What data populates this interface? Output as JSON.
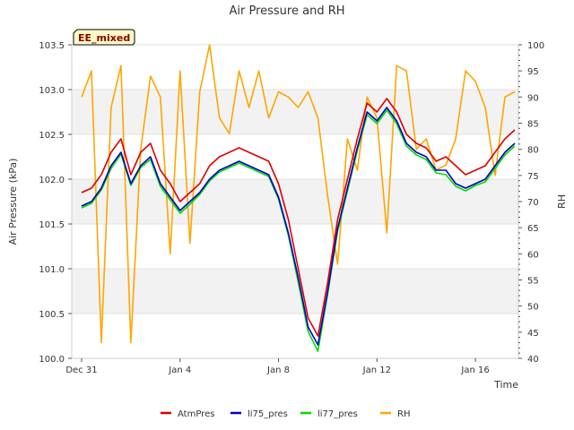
{
  "chart_data": {
    "type": "line",
    "title": "Air Pressure and RH",
    "xlabel": "Time",
    "ylabel": "Air Pressure (kPa)",
    "y2label": "RH",
    "badge": "EE_mixed",
    "x_ticks": [
      "Dec 31",
      "Jan 4",
      "Jan 8",
      "Jan 12",
      "Jan 16"
    ],
    "x_tick_days": [
      0,
      4,
      8,
      12,
      16
    ],
    "xlim_days": [
      0,
      17.6
    ],
    "ylim": [
      100.0,
      103.5
    ],
    "y_ticks": [
      "100.0",
      "100.5",
      "101.0",
      "101.5",
      "102.0",
      "102.5",
      "103.0",
      "103.5"
    ],
    "y2lim": [
      40,
      100
    ],
    "y2_ticks": [
      "40",
      "45",
      "50",
      "55",
      "60",
      "65",
      "70",
      "75",
      "80",
      "85",
      "90",
      "95",
      "100"
    ],
    "grid": "horizontal bands",
    "legend_position": "bottom",
    "x_days": [
      0.0,
      0.4,
      0.8,
      1.2,
      1.6,
      2.0,
      2.4,
      2.8,
      3.2,
      3.6,
      4.0,
      4.4,
      4.8,
      5.2,
      5.6,
      6.0,
      6.4,
      6.8,
      7.2,
      7.6,
      8.0,
      8.4,
      8.8,
      9.2,
      9.6,
      10.0,
      10.4,
      10.8,
      11.2,
      11.6,
      12.0,
      12.4,
      12.8,
      13.2,
      13.6,
      14.0,
      14.4,
      14.8,
      15.2,
      15.6,
      16.0,
      16.4,
      16.8,
      17.2,
      17.6
    ],
    "series": [
      {
        "name": "AtmPres",
        "color": "#dd0000",
        "axis": "left",
        "values": [
          101.85,
          101.9,
          102.05,
          102.3,
          102.45,
          102.05,
          102.3,
          102.4,
          102.1,
          101.95,
          101.75,
          101.85,
          101.95,
          102.15,
          102.25,
          102.3,
          102.35,
          102.3,
          102.25,
          102.2,
          101.95,
          101.55,
          101.0,
          100.45,
          100.25,
          100.85,
          101.55,
          102.0,
          102.45,
          102.85,
          102.75,
          102.9,
          102.75,
          102.5,
          102.4,
          102.35,
          102.2,
          102.25,
          102.15,
          102.05,
          102.1,
          102.15,
          102.3,
          102.45,
          102.55
        ]
      },
      {
        "name": "li75_pres",
        "color": "#0000cc",
        "axis": "left",
        "values": [
          101.7,
          101.75,
          101.9,
          102.15,
          102.3,
          101.95,
          102.15,
          102.25,
          101.95,
          101.8,
          101.65,
          101.75,
          101.85,
          102.0,
          102.1,
          102.15,
          102.2,
          102.15,
          102.1,
          102.05,
          101.8,
          101.4,
          100.9,
          100.35,
          100.15,
          100.75,
          101.45,
          101.9,
          102.35,
          102.75,
          102.65,
          102.8,
          102.65,
          102.4,
          102.3,
          102.25,
          102.1,
          102.1,
          101.95,
          101.9,
          101.95,
          102.0,
          102.15,
          102.3,
          102.4
        ]
      },
      {
        "name": "li77_pres",
        "color": "#00dd00",
        "axis": "left",
        "values": [
          101.68,
          101.73,
          101.88,
          102.12,
          102.28,
          101.93,
          102.13,
          102.22,
          101.92,
          101.77,
          101.62,
          101.72,
          101.83,
          101.98,
          102.08,
          102.13,
          102.18,
          102.13,
          102.08,
          102.03,
          101.78,
          101.37,
          100.85,
          100.3,
          100.08,
          100.72,
          101.42,
          101.87,
          102.32,
          102.72,
          102.62,
          102.77,
          102.62,
          102.37,
          102.27,
          102.22,
          102.07,
          102.05,
          101.92,
          101.87,
          101.93,
          101.97,
          102.12,
          102.27,
          102.37
        ]
      },
      {
        "name": "RH",
        "color": "#ffa500",
        "axis": "right",
        "values": [
          90,
          95,
          43,
          88,
          96,
          43,
          80,
          94,
          90,
          60,
          95,
          62,
          91,
          100,
          86,
          83,
          95,
          88,
          95,
          86,
          91,
          90,
          88,
          91,
          86,
          71,
          58,
          82,
          76,
          90,
          86,
          64,
          96,
          95,
          80,
          82,
          76,
          77,
          82,
          95,
          93,
          88,
          75,
          90,
          91
        ]
      }
    ]
  }
}
